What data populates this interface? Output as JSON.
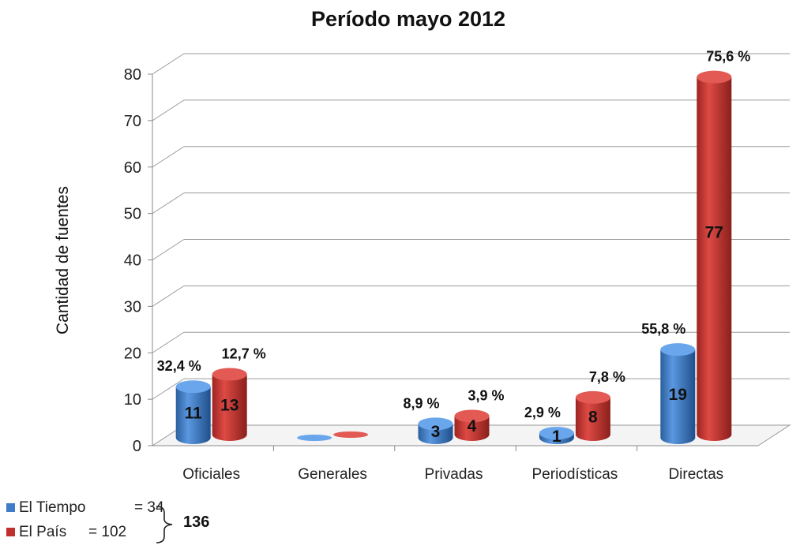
{
  "chart_data": {
    "type": "bar",
    "title": "Período mayo 2012",
    "ylabel": "Cantidad de fuentes",
    "xlabel": "",
    "ylim": [
      0,
      80
    ],
    "yticks": [
      0,
      10,
      20,
      30,
      40,
      50,
      60,
      70,
      80
    ],
    "grid": true,
    "categories": [
      "Oficiales",
      "Generales",
      "Privadas",
      "Periodísticas",
      "Directas"
    ],
    "series": [
      {
        "name": "El Tiempo",
        "color": "#3f7dc8",
        "values": [
          11,
          0,
          3,
          1,
          19
        ],
        "value_labels": [
          "11",
          "",
          "3",
          "1",
          "19"
        ],
        "percent_labels": [
          "32,4 %",
          "",
          "8,9 %",
          "2,9 %",
          "55,8 %"
        ]
      },
      {
        "name": "El País",
        "color": "#c0302c",
        "values": [
          13,
          0,
          4,
          8,
          77
        ],
        "value_labels": [
          "13",
          "",
          "4",
          "8",
          "77"
        ],
        "percent_labels": [
          "12,7 %",
          "",
          "3,9 %",
          "7,8 %",
          "75,6 %"
        ]
      }
    ],
    "legend_position": "bottom-left"
  },
  "legend": {
    "items": [
      {
        "name": "El Tiempo",
        "equals": "= 34",
        "color": "#3f7dc8"
      },
      {
        "name": "El País",
        "equals": "= 102",
        "color": "#c0302c"
      }
    ],
    "total": "136"
  }
}
